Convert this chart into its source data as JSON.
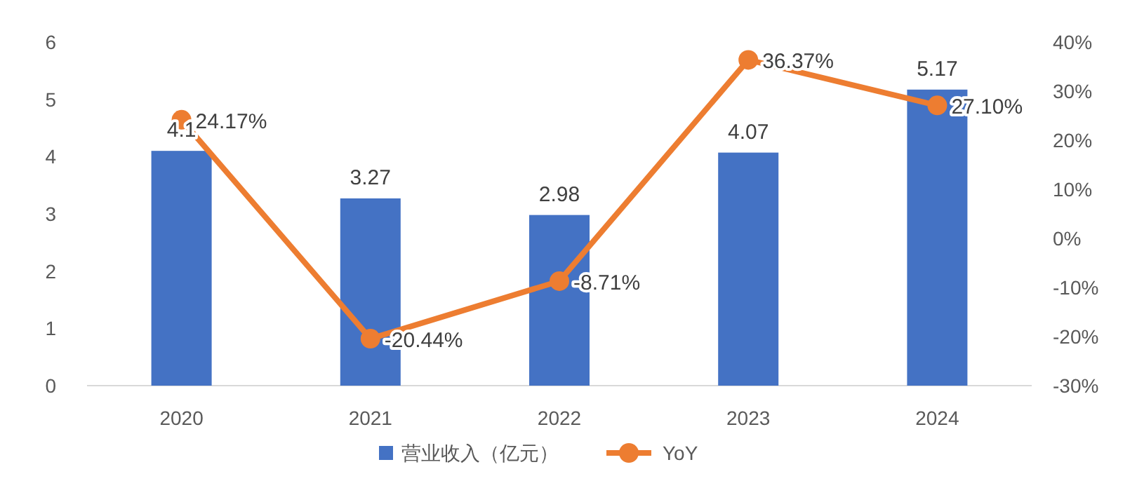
{
  "chart_data": {
    "type": "bar",
    "categories": [
      "2020",
      "2021",
      "2022",
      "2023",
      "2024"
    ],
    "series": [
      {
        "name": "营业收入（亿元）",
        "color": "#4472c4",
        "values": [
          4.1,
          3.27,
          2.98,
          4.07,
          5.17
        ],
        "value_labels": [
          "4.1",
          "3.27",
          "2.98",
          "4.07",
          "5.17"
        ]
      },
      {
        "name": "YoY",
        "type": "line",
        "axis": "y2",
        "color": "#ed7d31",
        "values": [
          24.17,
          -20.44,
          -8.71,
          36.37,
          27.1
        ],
        "value_labels": [
          "24.17%",
          "-20.44%",
          "-8.71%",
          "36.37%",
          "27.10%"
        ]
      }
    ],
    "ylim": [
      0,
      6
    ],
    "yticks": [
      0,
      1,
      2,
      3,
      4,
      5,
      6
    ],
    "y2lim": [
      -30,
      40
    ],
    "y2ticks": [
      {
        "value": -30,
        "label": "-30%"
      },
      {
        "value": -20,
        "label": "-20%"
      },
      {
        "value": -10,
        "label": "-10%"
      },
      {
        "value": 0,
        "label": "0%"
      },
      {
        "value": 10,
        "label": "10%"
      },
      {
        "value": 20,
        "label": "20%"
      },
      {
        "value": 30,
        "label": "30%"
      },
      {
        "value": 40,
        "label": "40%"
      }
    ],
    "legend": "bottom",
    "marker": "circle"
  }
}
